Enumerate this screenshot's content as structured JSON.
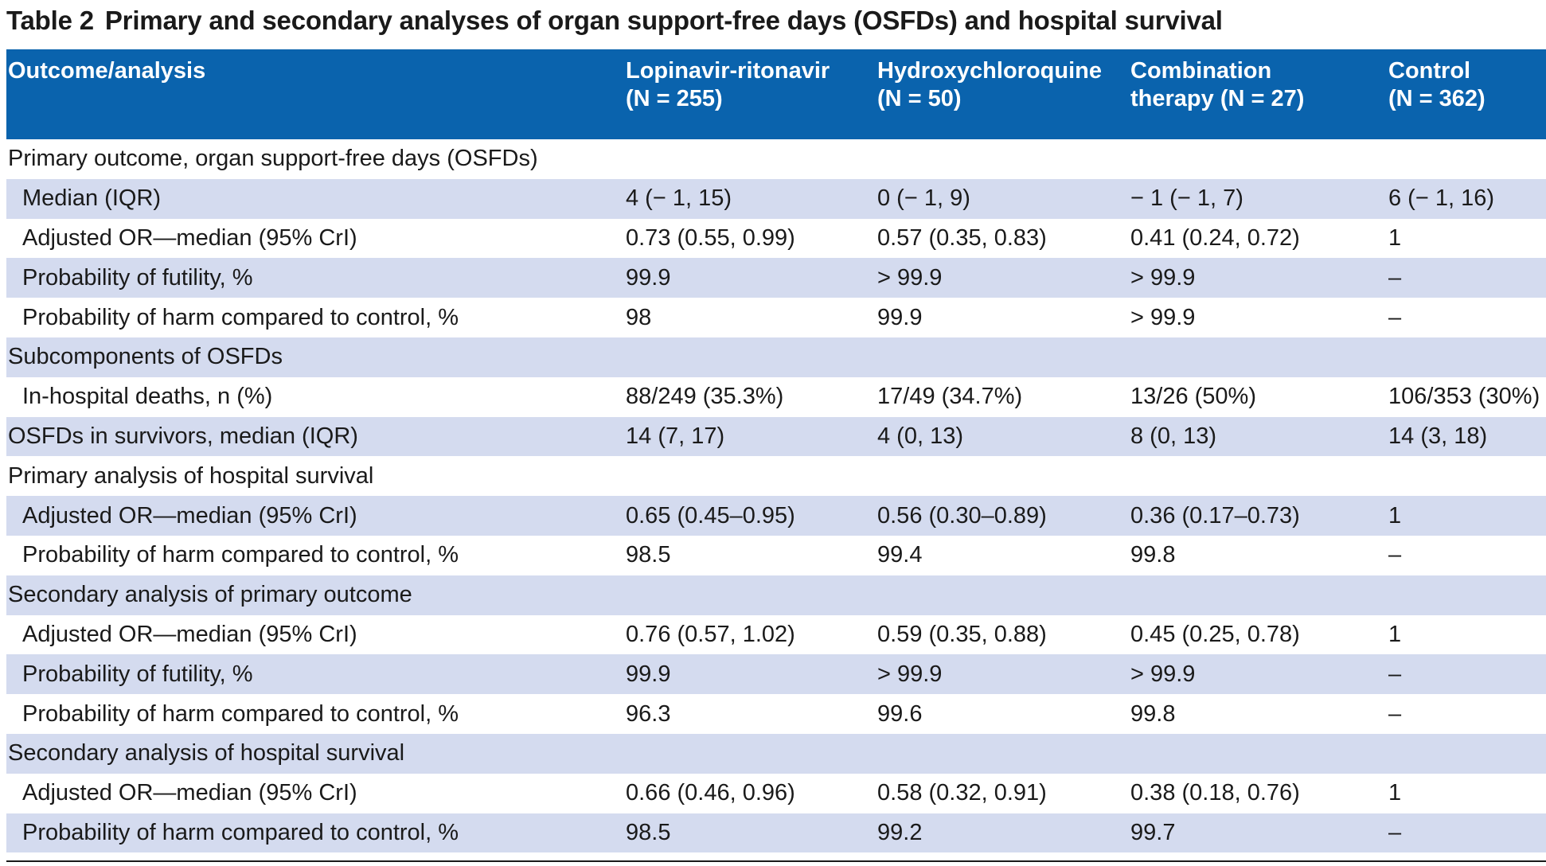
{
  "caption": {
    "label": "Table 2",
    "text": "Primary and secondary analyses of organ support-free days (OSFDs) and hospital survival"
  },
  "header": {
    "outcome": "Outcome/analysis",
    "lopinavir": {
      "name": "Lopinavir-ritonavir",
      "n": "(N = 255)"
    },
    "hydroxy": {
      "name": "Hydroxychloroquine",
      "n": "(N = 50)"
    },
    "combination": {
      "name": "Combination",
      "n": "therapy (N = 27)"
    },
    "control": {
      "name": "Control",
      "n": "(N = 362)"
    }
  },
  "rows": [
    {
      "label": "Primary outcome, organ support-free days (OSFDs)",
      "c1": "",
      "c2": "",
      "c3": "",
      "c4": ""
    },
    {
      "label": "Median (IQR)",
      "c1": "4 (− 1, 15)",
      "c2": "0 (− 1, 9)",
      "c3": "− 1 (− 1, 7)",
      "c4": "6 (− 1, 16)"
    },
    {
      "label": "Adjusted OR—median (95% CrI)",
      "c1": "0.73 (0.55, 0.99)",
      "c2": "0.57 (0.35, 0.83)",
      "c3": "0.41 (0.24, 0.72)",
      "c4": "1"
    },
    {
      "label": "Probability of futility, %",
      "c1": "99.9",
      "c2": "> 99.9",
      "c3": "> 99.9",
      "c4": "–"
    },
    {
      "label": "Probability of harm compared to control, %",
      "c1": "98",
      "c2": "99.9",
      "c3": "> 99.9",
      "c4": "–"
    },
    {
      "label": "Subcomponents of OSFDs",
      "c1": "",
      "c2": "",
      "c3": "",
      "c4": ""
    },
    {
      "label": "In-hospital deaths, n (%)",
      "c1": "88/249 (35.3%)",
      "c2": "17/49 (34.7%)",
      "c3": "13/26 (50%)",
      "c4": "106/353 (30%)"
    },
    {
      "label": "OSFDs in survivors, median (IQR)",
      "c1": "14 (7, 17)",
      "c2": "4 (0, 13)",
      "c3": "8 (0, 13)",
      "c4": "14 (3, 18)"
    },
    {
      "label": "Primary analysis of hospital survival",
      "c1": "",
      "c2": "",
      "c3": "",
      "c4": ""
    },
    {
      "label": "Adjusted OR—median (95% CrI)",
      "c1": "0.65 (0.45–0.95)",
      "c2": "0.56 (0.30–0.89)",
      "c3": "0.36 (0.17–0.73)",
      "c4": "1"
    },
    {
      "label": "Probability of harm compared to control, %",
      "c1": "98.5",
      "c2": "99.4",
      "c3": "99.8",
      "c4": "–"
    },
    {
      "label": "Secondary analysis of primary outcome",
      "c1": "",
      "c2": "",
      "c3": "",
      "c4": ""
    },
    {
      "label": "Adjusted OR—median (95% CrI)",
      "c1": "0.76 (0.57, 1.02)",
      "c2": "0.59 (0.35, 0.88)",
      "c3": "0.45 (0.25, 0.78)",
      "c4": "1"
    },
    {
      "label": "Probability of futility, %",
      "c1": "99.9",
      "c2": "> 99.9",
      "c3": "> 99.9",
      "c4": "–"
    },
    {
      "label": "Probability of harm compared to control, %",
      "c1": "96.3",
      "c2": "99.6",
      "c3": "99.8",
      "c4": "–"
    },
    {
      "label": "Secondary analysis of hospital survival",
      "c1": "",
      "c2": "",
      "c3": "",
      "c4": ""
    },
    {
      "label": "Adjusted OR—median (95% CrI)",
      "c1": "0.66 (0.46, 0.96)",
      "c2": "0.58 (0.32, 0.91)",
      "c3": "0.38 (0.18, 0.76)",
      "c4": "1"
    },
    {
      "label": "Probability of harm compared to control, %",
      "c1": "98.5",
      "c2": "99.2",
      "c3": "99.7",
      "c4": "–"
    }
  ],
  "colors": {
    "header_bg": "#0a63ad",
    "header_text": "#ffffff",
    "row_shade": "#d4dbef",
    "text": "#1a1a1a"
  }
}
